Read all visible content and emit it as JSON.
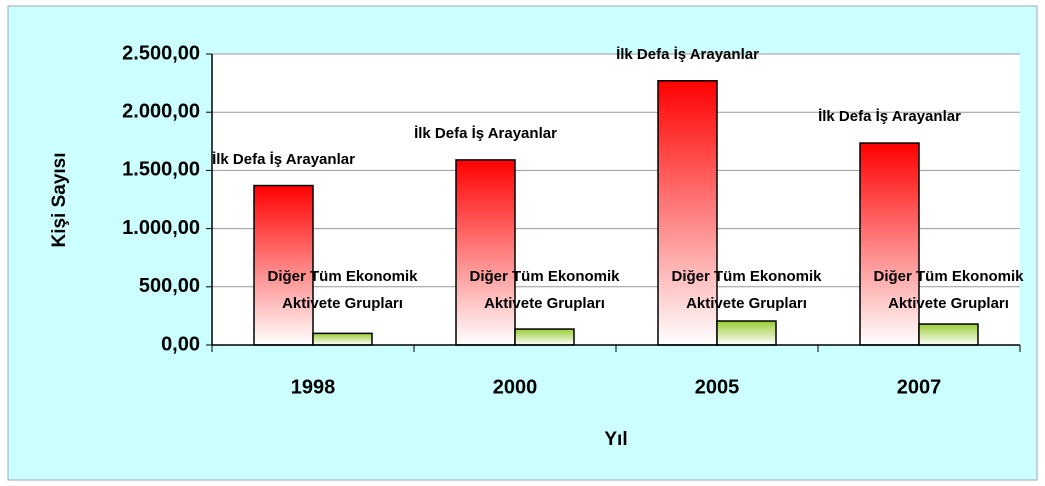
{
  "chart_data": {
    "type": "bar",
    "y_axis_label": "Kişi Sayısı",
    "x_axis_label": "Yıl",
    "categories": [
      "1998",
      "2000",
      "2005",
      "2007"
    ],
    "series": [
      {
        "name": "İlk Defa İş Arayanlar",
        "color": "#ff0000",
        "values": [
          1370,
          1590,
          2270,
          1735
        ]
      },
      {
        "name": "Diğer Tüm Ekonomik Aktivete Grupları",
        "color": "#99cc33",
        "values": [
          100,
          137,
          206,
          180
        ]
      }
    ],
    "ylim": [
      0,
      2500
    ],
    "yticks": [
      {
        "value": 0,
        "label": "0,00"
      },
      {
        "value": 500,
        "label": "500,00"
      },
      {
        "value": 1000,
        "label": "1.000,00"
      },
      {
        "value": 1500,
        "label": "1.500,00"
      },
      {
        "value": 2000,
        "label": "2.000,00"
      },
      {
        "value": 2500,
        "label": "2.500,00"
      }
    ],
    "grid": true
  }
}
